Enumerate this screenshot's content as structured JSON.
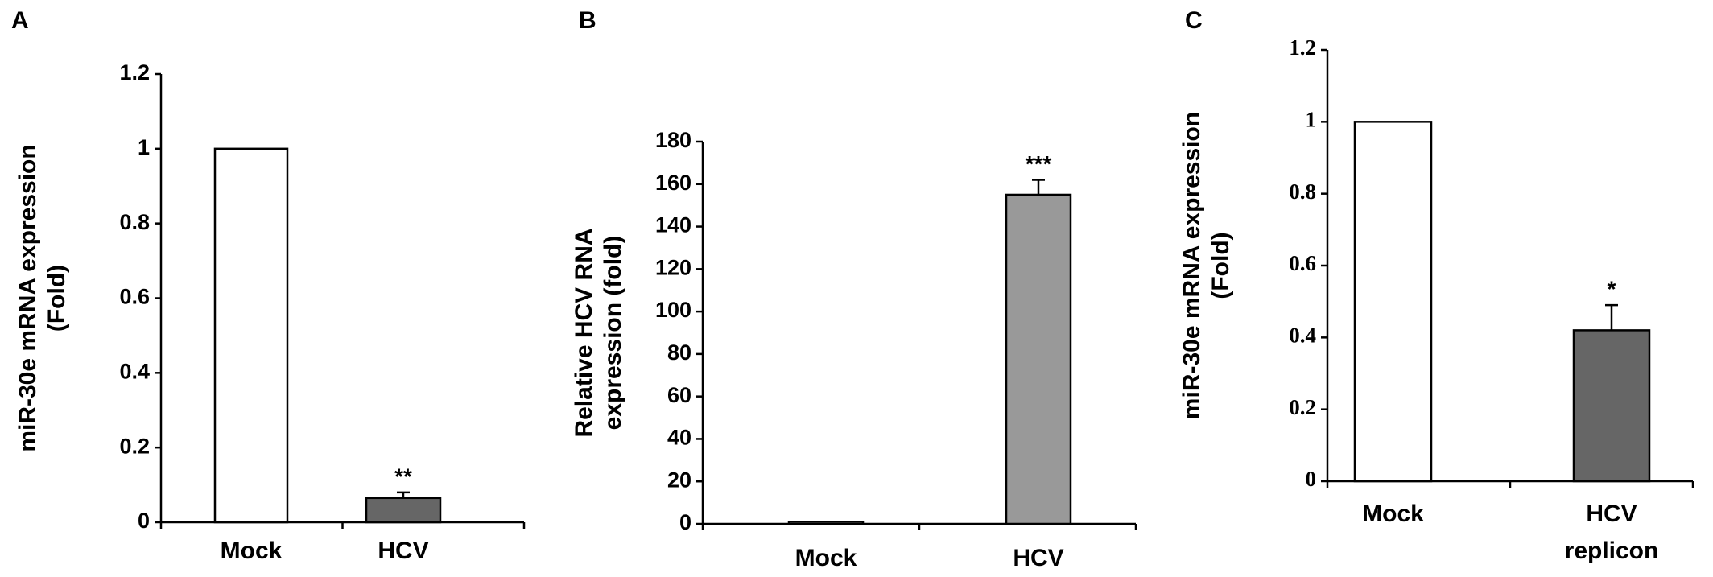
{
  "chart_data": [
    {
      "type": "bar",
      "panel": "A",
      "ylabel": [
        "miR-30e mRNA expression",
        "(Fold)"
      ],
      "categories": [
        "Mock",
        "HCV"
      ],
      "values": [
        1,
        0.065
      ],
      "errors": [
        null,
        0.015
      ],
      "annotations": [
        null,
        "**"
      ],
      "colors": [
        "#ffffff",
        "#666666"
      ],
      "ylim": [
        0,
        1.2
      ],
      "yticks": [
        0,
        0.2,
        0.4,
        0.6,
        0.8,
        1,
        1.2
      ]
    },
    {
      "type": "bar",
      "panel": "B",
      "ylabel": [
        "Relative HCV RNA",
        "expression (fold)"
      ],
      "categories": [
        "Mock",
        "HCV"
      ],
      "values": [
        1,
        155
      ],
      "errors": [
        null,
        7
      ],
      "annotations": [
        null,
        "***"
      ],
      "colors": [
        "#ffffff",
        "#999999"
      ],
      "ylim": [
        0,
        180
      ],
      "yticks": [
        0,
        20,
        40,
        60,
        80,
        100,
        120,
        140,
        160,
        180
      ]
    },
    {
      "type": "bar",
      "panel": "C",
      "ylabel": [
        "miR-30e mRNA expression",
        "(Fold)"
      ],
      "categories": [
        "Mock",
        "HCV replicon"
      ],
      "values": [
        1,
        0.42
      ],
      "errors": [
        null,
        0.07
      ],
      "annotations": [
        null,
        "*"
      ],
      "colors": [
        "#ffffff",
        "#666666"
      ],
      "ylim": [
        0,
        1.2
      ],
      "yticks": [
        0,
        0.2,
        0.4,
        0.6,
        0.8,
        1,
        1.2
      ]
    }
  ]
}
